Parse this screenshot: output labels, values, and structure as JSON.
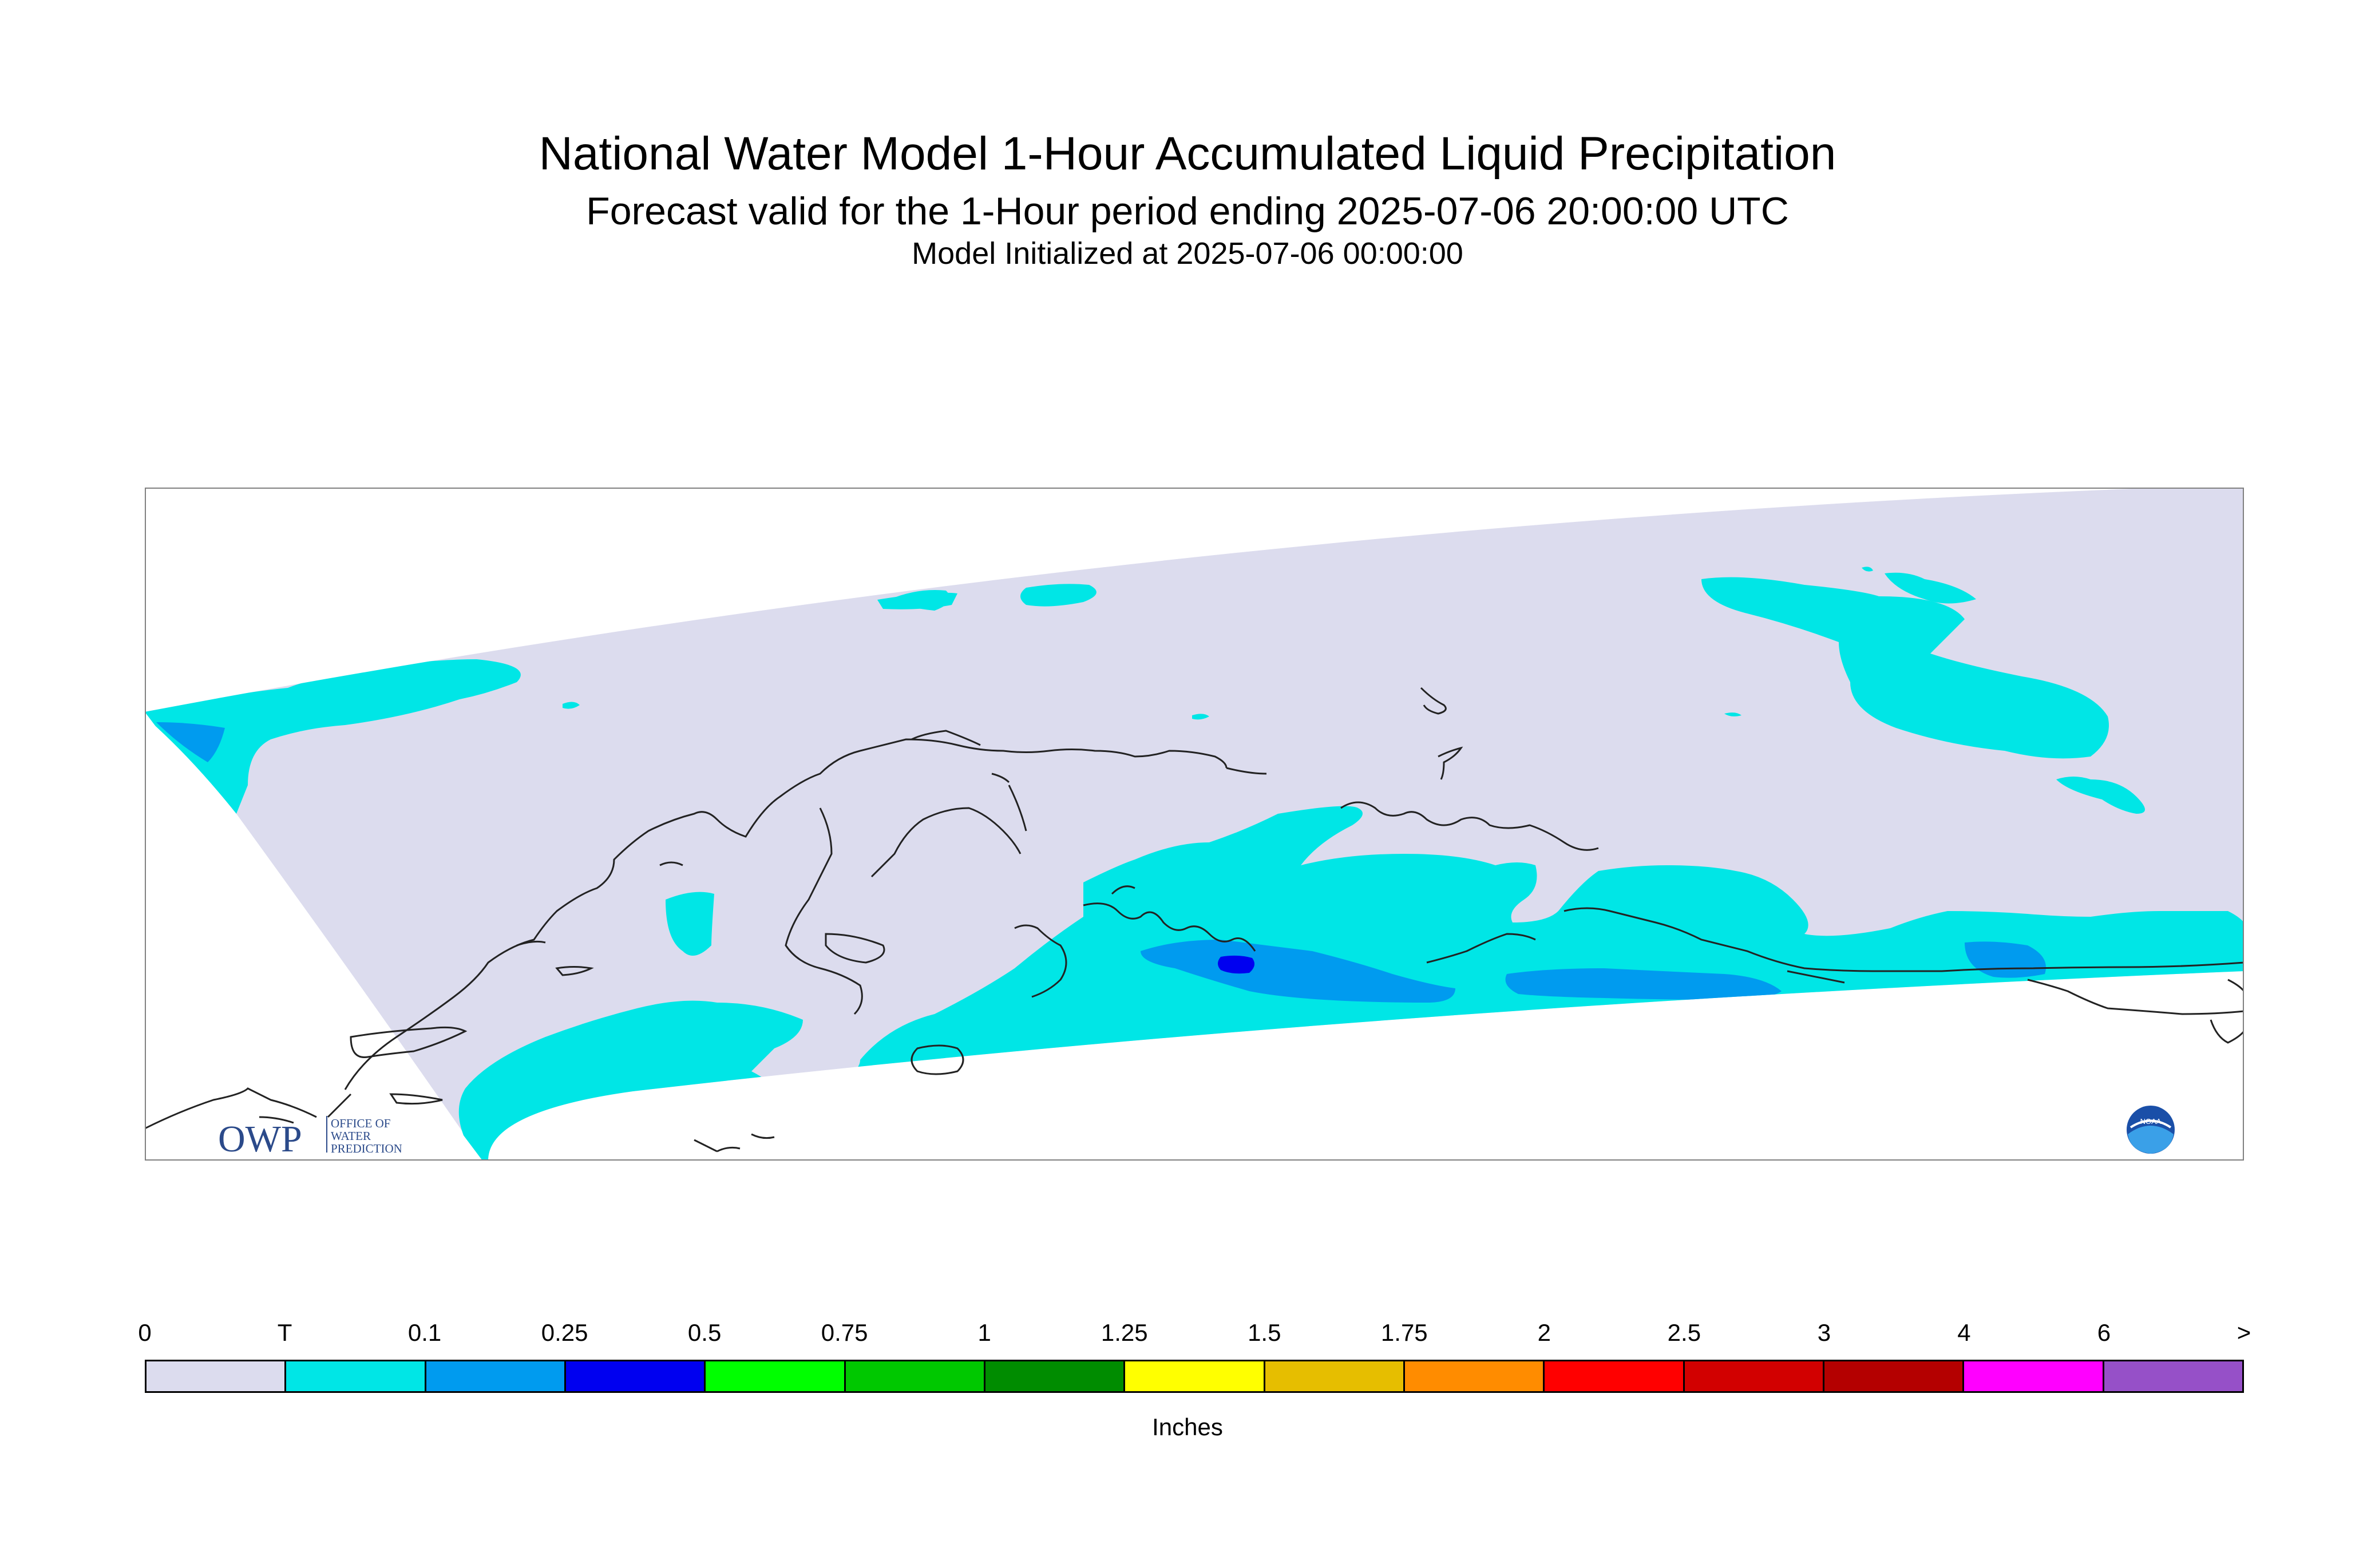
{
  "title": "National Water Model 1-Hour Accumulated Liquid Precipitation",
  "subtitle": "Forecast valid for the 1-Hour period ending 2025-07-06 20:00:00 UTC",
  "init": "Model Initialized at 2025-07-06 00:00:00",
  "logos": {
    "owp_letters": "OWP",
    "owp_line1": "OFFICE OF",
    "owp_line2": "WATER",
    "owp_line3": "PREDICTION",
    "noaa": "NOAA"
  },
  "legend": {
    "units": "Inches",
    "labels": [
      "0",
      "T",
      "0.1",
      "0.25",
      "0.5",
      "0.75",
      "1",
      "1.25",
      "1.5",
      "1.75",
      "2",
      "2.5",
      "3",
      "4",
      "6",
      ">"
    ],
    "colors": [
      "#dcdcee",
      "#00e6e6",
      "#009bef",
      "#0000f0",
      "#00ff00",
      "#00c800",
      "#008c00",
      "#ffff00",
      "#e6be00",
      "#ff8c00",
      "#ff0000",
      "#d20000",
      "#b40000",
      "#ff00ff",
      "#9650c8"
    ]
  },
  "colors": {
    "domain": "#dcdcee",
    "trace": "#00e6e6",
    "light": "#009bef",
    "moderate": "#0000f0"
  }
}
